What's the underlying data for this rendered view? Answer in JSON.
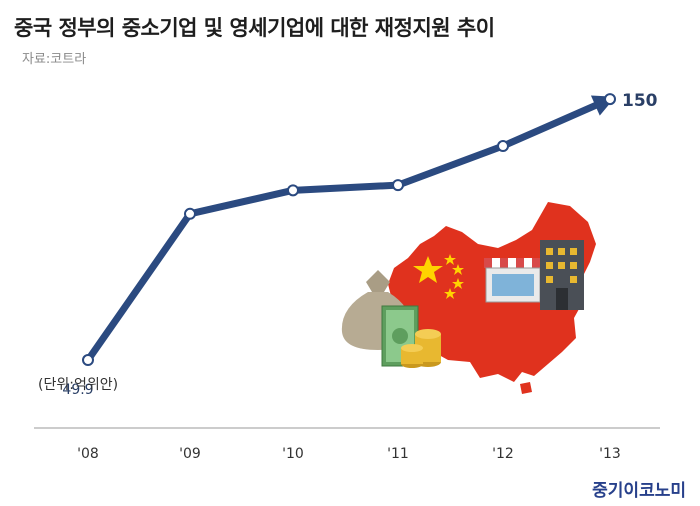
{
  "title": "중국 정부의 중소기업 및 영세기업에 대한 재정지원 추이",
  "source": "자료:코트라",
  "unit_label": "(단위:억위안)",
  "brand": "중기이코노미",
  "colors": {
    "line": "#2b4a80",
    "marker_fill": "#ffffff",
    "axis": "#999999"
  },
  "chart_data": {
    "type": "line",
    "title": "중국 정부의 중소기업 및 영세기업에 대한 재정지원 추이",
    "xlabel": "",
    "ylabel": "",
    "unit": "억위안",
    "categories": [
      "'08",
      "'09",
      "'10",
      "'11",
      "'12",
      "'13"
    ],
    "series": [
      {
        "values": [
          49.9,
          106,
          115,
          117,
          132,
          150
        ]
      }
    ],
    "data_labels": [
      "49.9",
      null,
      null,
      null,
      null,
      "150"
    ],
    "ylim": [
      20,
      165
    ],
    "grid": false,
    "legend": "none",
    "trend_arrow": true
  },
  "illustration": {
    "name": "china-map-with-money-and-shops-illustration",
    "colors": {
      "map": "#e0321e",
      "star": "#ffd400",
      "money": "#7ab87a",
      "coin": "#e8b830",
      "bag": "#b7ab93",
      "building": "#4a4f56",
      "awning": "#d84a4a"
    }
  }
}
